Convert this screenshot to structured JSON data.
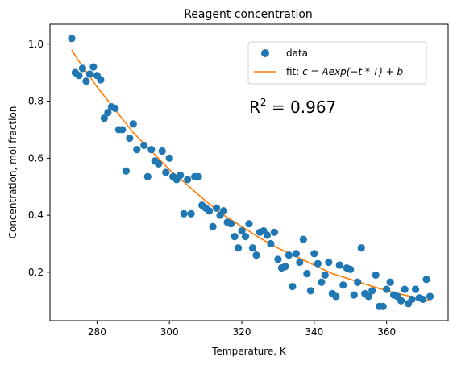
{
  "chart_data": {
    "type": "scatter",
    "title": "Reagent concentration",
    "xlabel": "Temperature, K",
    "ylabel": "Concentration, mol fraction",
    "xlim": [
      267,
      377
    ],
    "ylim": [
      0.03,
      1.07
    ],
    "xticks": [
      280,
      300,
      320,
      340,
      360
    ],
    "yticks": [
      0.2,
      0.4,
      0.6,
      0.8,
      1.0
    ],
    "xtick_labels": [
      "280",
      "300",
      "320",
      "340",
      "360"
    ],
    "ytick_labels": [
      "0.2",
      "0.4",
      "0.6",
      "0.8",
      "1.0"
    ],
    "legend_placement": "upper-right",
    "legend": {
      "data_label": "data",
      "fit_prefix": "fit: ",
      "fit_formula": "c = Aexp(−t * T) + b"
    },
    "annotation": {
      "r2_prefix": "R",
      "r2_sup": "2",
      "r2_value": " = 0.967"
    },
    "colors": {
      "data": "#1f77b4",
      "fit": "#ff7f0e"
    },
    "series": [
      {
        "name": "data",
        "kind": "scatter",
        "points": [
          [
            273,
            1.02
          ],
          [
            274,
            0.9
          ],
          [
            275,
            0.89
          ],
          [
            276,
            0.915
          ],
          [
            277,
            0.87
          ],
          [
            278,
            0.895
          ],
          [
            279,
            0.92
          ],
          [
            280,
            0.89
          ],
          [
            281,
            0.875
          ],
          [
            282,
            0.74
          ],
          [
            283,
            0.76
          ],
          [
            284,
            0.78
          ],
          [
            285,
            0.775
          ],
          [
            286,
            0.7
          ],
          [
            287,
            0.7
          ],
          [
            288,
            0.555
          ],
          [
            289,
            0.67
          ],
          [
            290,
            0.72
          ],
          [
            291,
            0.63
          ],
          [
            293,
            0.645
          ],
          [
            294,
            0.535
          ],
          [
            295,
            0.63
          ],
          [
            296,
            0.59
          ],
          [
            297,
            0.58
          ],
          [
            298,
            0.625
          ],
          [
            299,
            0.55
          ],
          [
            300,
            0.6
          ],
          [
            301,
            0.535
          ],
          [
            302,
            0.525
          ],
          [
            303,
            0.54
          ],
          [
            304,
            0.405
          ],
          [
            305,
            0.525
          ],
          [
            306,
            0.405
          ],
          [
            307,
            0.535
          ],
          [
            308,
            0.535
          ],
          [
            309,
            0.435
          ],
          [
            310,
            0.425
          ],
          [
            311,
            0.415
          ],
          [
            312,
            0.36
          ],
          [
            313,
            0.425
          ],
          [
            314,
            0.4
          ],
          [
            315,
            0.415
          ],
          [
            316,
            0.375
          ],
          [
            317,
            0.37
          ],
          [
            318,
            0.325
          ],
          [
            319,
            0.285
          ],
          [
            320,
            0.345
          ],
          [
            321,
            0.325
          ],
          [
            322,
            0.37
          ],
          [
            323,
            0.285
          ],
          [
            324,
            0.26
          ],
          [
            325,
            0.34
          ],
          [
            326,
            0.345
          ],
          [
            327,
            0.33
          ],
          [
            328,
            0.3
          ],
          [
            329,
            0.34
          ],
          [
            330,
            0.245
          ],
          [
            331,
            0.215
          ],
          [
            332,
            0.22
          ],
          [
            333,
            0.26
          ],
          [
            334,
            0.15
          ],
          [
            335,
            0.265
          ],
          [
            336,
            0.235
          ],
          [
            337,
            0.315
          ],
          [
            338,
            0.195
          ],
          [
            339,
            0.135
          ],
          [
            340,
            0.265
          ],
          [
            341,
            0.23
          ],
          [
            342,
            0.165
          ],
          [
            343,
            0.19
          ],
          [
            344,
            0.235
          ],
          [
            345,
            0.125
          ],
          [
            346,
            0.115
          ],
          [
            347,
            0.225
          ],
          [
            348,
            0.155
          ],
          [
            349,
            0.215
          ],
          [
            350,
            0.21
          ],
          [
            351,
            0.12
          ],
          [
            352,
            0.165
          ],
          [
            353,
            0.285
          ],
          [
            354,
            0.125
          ],
          [
            355,
            0.115
          ],
          [
            356,
            0.135
          ],
          [
            357,
            0.19
          ],
          [
            358,
            0.08
          ],
          [
            359,
            0.08
          ],
          [
            360,
            0.14
          ],
          [
            361,
            0.165
          ],
          [
            362,
            0.12
          ],
          [
            363,
            0.115
          ],
          [
            364,
            0.1
          ],
          [
            365,
            0.14
          ],
          [
            366,
            0.09
          ],
          [
            367,
            0.105
          ],
          [
            368,
            0.14
          ],
          [
            369,
            0.11
          ],
          [
            370,
            0.105
          ],
          [
            371,
            0.175
          ],
          [
            372,
            0.115
          ]
        ]
      },
      {
        "name": "fit",
        "kind": "line",
        "points": [
          [
            273,
            0.98
          ],
          [
            275,
            0.94
          ],
          [
            280,
            0.85
          ],
          [
            285,
            0.77
          ],
          [
            290,
            0.69
          ],
          [
            295,
            0.625
          ],
          [
            300,
            0.56
          ],
          [
            305,
            0.505
          ],
          [
            310,
            0.45
          ],
          [
            315,
            0.4
          ],
          [
            320,
            0.36
          ],
          [
            325,
            0.32
          ],
          [
            330,
            0.285
          ],
          [
            335,
            0.255
          ],
          [
            340,
            0.225
          ],
          [
            345,
            0.195
          ],
          [
            350,
            0.175
          ],
          [
            355,
            0.155
          ],
          [
            360,
            0.135
          ],
          [
            365,
            0.12
          ],
          [
            370,
            0.105
          ],
          [
            372,
            0.1
          ]
        ]
      }
    ]
  }
}
